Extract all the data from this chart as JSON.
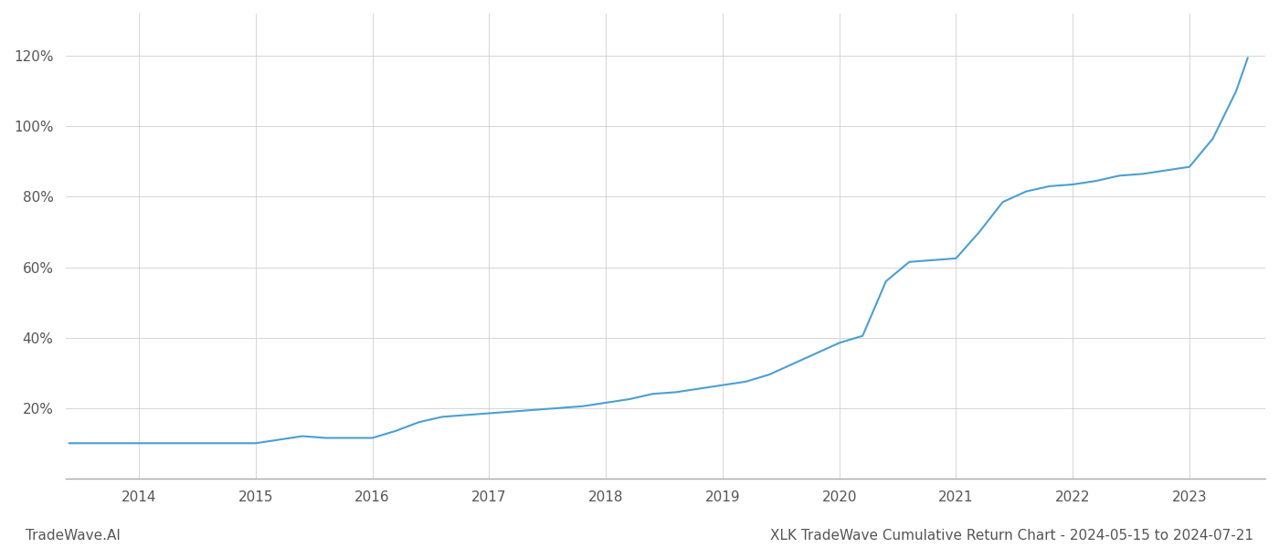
{
  "title": "XLK TradeWave Cumulative Return Chart - 2024-05-15 to 2024-07-21",
  "watermark": "TradeWave.AI",
  "line_color": "#4a9fd4",
  "background_color": "#ffffff",
  "grid_color": "#cccccc",
  "x_years": [
    2014,
    2015,
    2016,
    2017,
    2018,
    2019,
    2020,
    2021,
    2022,
    2023
  ],
  "y_ticks": [
    0.2,
    0.4,
    0.6,
    0.8,
    1.0,
    1.2
  ],
  "y_tick_labels": [
    "20%",
    "40%",
    "60%",
    "80%",
    "100%",
    "120%"
  ],
  "data_x": [
    2013.4,
    2013.6,
    2013.8,
    2014.0,
    2014.2,
    2014.4,
    2014.6,
    2014.8,
    2015.0,
    2015.2,
    2015.4,
    2015.6,
    2015.8,
    2016.0,
    2016.2,
    2016.4,
    2016.6,
    2016.8,
    2017.0,
    2017.2,
    2017.4,
    2017.6,
    2017.8,
    2018.0,
    2018.2,
    2018.4,
    2018.6,
    2018.8,
    2019.0,
    2019.2,
    2019.4,
    2019.6,
    2019.8,
    2020.0,
    2020.2,
    2020.4,
    2020.6,
    2020.8,
    2021.0,
    2021.2,
    2021.4,
    2021.6,
    2021.8,
    2022.0,
    2022.2,
    2022.4,
    2022.6,
    2022.8,
    2023.0,
    2023.2,
    2023.4,
    2023.5
  ],
  "data_y": [
    0.1,
    0.1,
    0.1,
    0.1,
    0.1,
    0.1,
    0.1,
    0.1,
    0.1,
    0.11,
    0.12,
    0.115,
    0.115,
    0.115,
    0.135,
    0.16,
    0.175,
    0.18,
    0.185,
    0.19,
    0.195,
    0.2,
    0.205,
    0.215,
    0.225,
    0.24,
    0.245,
    0.255,
    0.265,
    0.275,
    0.295,
    0.325,
    0.355,
    0.385,
    0.405,
    0.56,
    0.615,
    0.62,
    0.625,
    0.7,
    0.785,
    0.815,
    0.83,
    0.835,
    0.845,
    0.86,
    0.865,
    0.875,
    0.885,
    0.965,
    1.1,
    1.195
  ],
  "xlim": [
    2013.37,
    2023.65
  ],
  "ylim": [
    0.0,
    1.32
  ],
  "xlabel_fontsize": 11,
  "ylabel_fontsize": 11,
  "title_fontsize": 11,
  "watermark_fontsize": 11,
  "line_width": 1.5,
  "tick_label_color": "#555555",
  "title_color": "#555555",
  "watermark_color": "#555555"
}
